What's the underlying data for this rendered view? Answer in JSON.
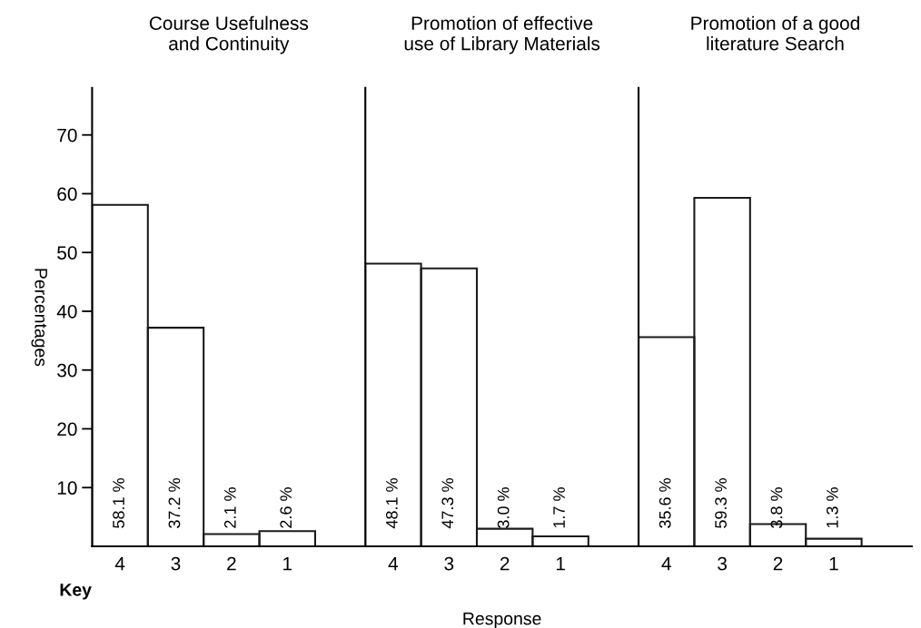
{
  "chart_data": [
    {
      "type": "bar",
      "title": "Course Usefulness\nand Continuity",
      "ylabel": "Percentages",
      "annotations": [
        "Key"
      ],
      "categories": [
        "4",
        "3",
        "2",
        "1"
      ],
      "values": [
        58.1,
        37.2,
        2.1,
        2.6
      ],
      "value_labels": [
        "58.1 %",
        "37.2 %",
        "2.1 %",
        "2.6 %"
      ],
      "color": "#1a1a1a",
      "ylim": [
        0,
        78
      ],
      "yticks": [
        10,
        20,
        30,
        40,
        50,
        60,
        70
      ],
      "grid": false,
      "legend": false
    },
    {
      "type": "bar",
      "title": "Promotion of effective\nuse of Library Materials",
      "xlabel": "Response",
      "categories": [
        "4",
        "3",
        "2",
        "1"
      ],
      "values": [
        48.1,
        47.3,
        3.0,
        1.7
      ],
      "value_labels": [
        "48.1 %",
        "47.3 %",
        "3.0 %",
        "1.7 %"
      ],
      "color": "#1a1a1a",
      "ylim": [
        0,
        78
      ],
      "tick_labels": "x",
      "grid": false,
      "legend": false
    },
    {
      "type": "bar",
      "title": "Promotion of a good\nliterature Search",
      "categories": [
        "4",
        "3",
        "2",
        "1"
      ],
      "values": [
        35.6,
        59.3,
        3.8,
        1.3
      ],
      "value_labels": [
        "35.6 %",
        "59.3 %",
        "3.8 %",
        "1.3 %"
      ],
      "color": "#1a1a1a",
      "ylim": [
        0,
        78
      ],
      "tick_labels": "x",
      "grid": false,
      "legend": false
    }
  ]
}
